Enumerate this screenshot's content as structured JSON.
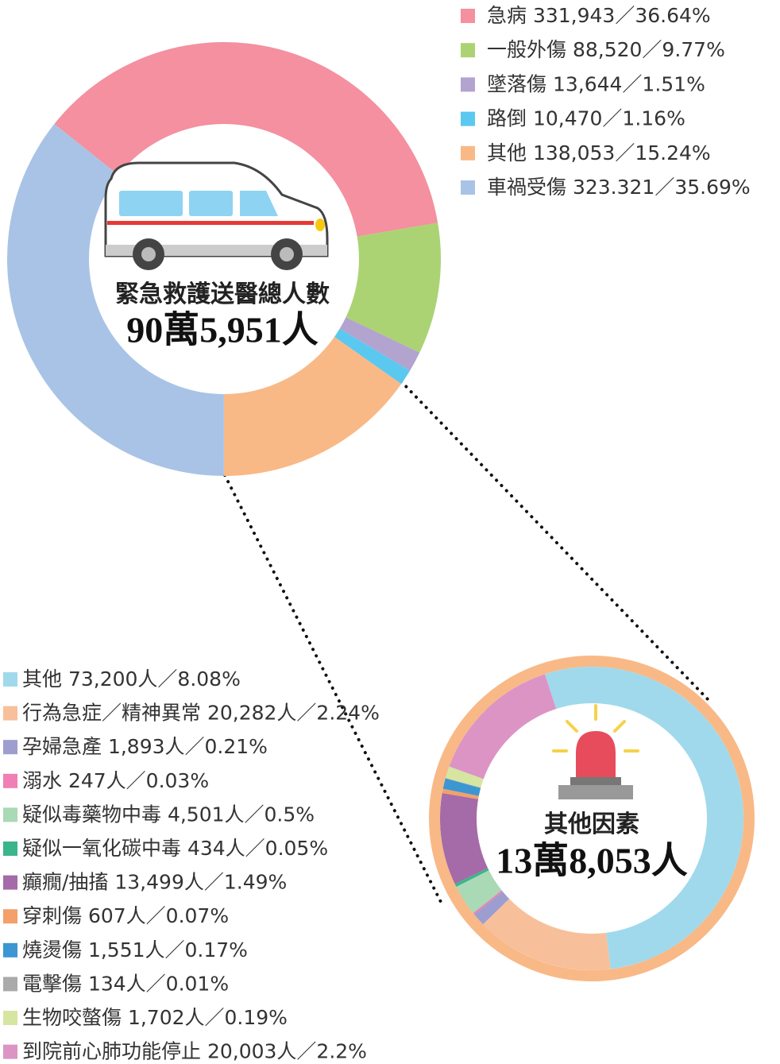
{
  "chart_data": [
    {
      "type": "donut",
      "title": "緊急救護送醫總人數",
      "total": "90萬5,951人",
      "categories": [
        "急病 331,943／36.64%",
        "一般外傷  88,520／9.77%",
        "墜落傷 13,644／1.51%",
        "路倒 10,470／1.16%",
        "其他 138,053／15.24%",
        "車禍受傷 323.321／35.69%"
      ],
      "values": [
        36.64,
        9.77,
        1.51,
        1.16,
        15.24,
        35.69
      ],
      "colors": [
        "#f4909f",
        "#abd373",
        "#b3a3cf",
        "#5bc8f0",
        "#f8b987",
        "#a9c3e6"
      ]
    },
    {
      "type": "donut",
      "title": "其他因素",
      "total": "13萬8,053人",
      "categories": [
        "其他 73,200人／8.08%",
        "行為急症／精神異常 20,282人／2.24%",
        "孕婦急產 1,893人／0.21%",
        "溺水 247人／0.03%",
        "疑似毒藥物中毒 4,501人／0.5%",
        "疑似一氧化碳中毒 434人／0.05%",
        "癲癇/抽搐 13,499人／1.49%",
        "穿刺傷 607人／0.07%",
        "燒燙傷 1,551人／0.17%",
        "電擊傷 134人／0.01%",
        "生物咬螫傷 1,702人／0.19%",
        "到院前心肺功能停止 20,003人／2.2%"
      ],
      "values": [
        8.08,
        2.24,
        0.21,
        0.03,
        0.5,
        0.05,
        1.49,
        0.07,
        0.17,
        0.01,
        0.19,
        2.2
      ],
      "colors": [
        "#a0d9ec",
        "#f8c09a",
        "#9d9dd0",
        "#ef7fb4",
        "#a9d9b5",
        "#3bb58a",
        "#a56aa8",
        "#f3a06b",
        "#3c96d2",
        "#aaaaaa",
        "#d6e5a0",
        "#dc94c5"
      ]
    }
  ]
}
